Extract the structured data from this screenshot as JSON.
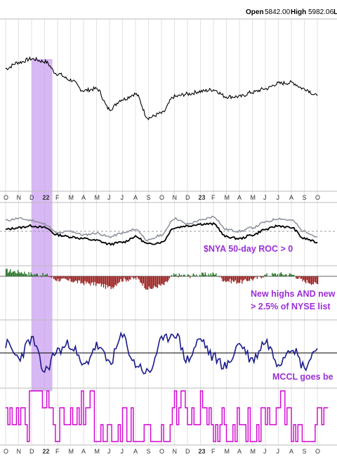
{
  "header": {
    "open_label": "Open",
    "open_value": "5842.00",
    "high_label": "High",
    "high_value": "5982.06",
    "low_label_partial": "Lo"
  },
  "x_axis": {
    "months": [
      "O",
      "N",
      "D",
      "22",
      "F",
      "M",
      "A",
      "M",
      "J",
      "J",
      "A",
      "S",
      "O",
      "N",
      "D",
      "23",
      "F",
      "M",
      "A",
      "M",
      "J",
      "J",
      "A",
      "S",
      "O"
    ],
    "year_labels": [
      "22",
      "23"
    ]
  },
  "highlight": {
    "color": "#c79af0",
    "start_month_index": 2.0,
    "end_month_index": 3.6
  },
  "colors": {
    "price": "#000000",
    "roc_light": "#8a8f9a",
    "roc_dark": "#000000",
    "nh_down": "#9b1c1c",
    "nh_up": "#1f6e1f",
    "mccl": "#1a1a8c",
    "signal": "#d100d1",
    "annotation": "#9b2fd6"
  },
  "annotations": {
    "roc": "$NYA 50-day ROC > 0",
    "newhighs_line1": "New highs AND new",
    "newhighs_line2": "> 2.5% of NYSE list",
    "mccl": "MCCL goes be"
  },
  "chart_data": [
    {
      "type": "line",
      "panel": "price",
      "x": [
        "2021-10",
        "2021-11",
        "2021-12",
        "2022-01",
        "2022-02",
        "2022-03",
        "2022-04",
        "2022-05",
        "2022-06",
        "2022-07",
        "2022-08",
        "2022-09",
        "2022-10",
        "2022-11",
        "2022-12",
        "2023-01",
        "2023-02",
        "2023-03",
        "2023-04",
        "2023-05",
        "2023-06",
        "2023-07",
        "2023-08",
        "2023-09",
        "2023-10"
      ],
      "series": [
        {
          "values": [
            16900,
            17250,
            17450,
            17300,
            16600,
            16250,
            15650,
            15750,
            14600,
            15150,
            15450,
            14100,
            14350,
            15300,
            15450,
            15600,
            15700,
            15300,
            15300,
            15550,
            15750,
            16050,
            16100,
            15750,
            15350
          ]
        }
      ]
    },
    {
      "type": "line",
      "panel": "roc",
      "x": [
        "2021-10",
        "2021-11",
        "2021-12",
        "2022-01",
        "2022-02",
        "2022-03",
        "2022-04",
        "2022-05",
        "2022-06",
        "2022-07",
        "2022-08",
        "2022-09",
        "2022-10",
        "2022-11",
        "2022-12",
        "2023-01",
        "2023-02",
        "2023-03",
        "2023-04",
        "2023-05",
        "2023-06",
        "2023-07",
        "2023-08",
        "2023-09",
        "2023-10"
      ],
      "series": [
        {
          "values": [
            3,
            4,
            3,
            1,
            -4,
            -3,
            -5,
            -4,
            -6,
            -4,
            -2,
            -8,
            -5,
            4,
            1,
            3,
            5,
            -2,
            -3,
            -1,
            2,
            4,
            3,
            -3,
            -6
          ]
        },
        {
          "values": [
            1,
            2,
            3,
            2,
            -2,
            -3,
            -4,
            -5,
            -7,
            -6,
            -3,
            -7,
            -6,
            2,
            3,
            4,
            4,
            -3,
            -4,
            -2,
            1,
            3,
            2,
            -4,
            -6
          ]
        }
      ]
    },
    {
      "type": "bar",
      "panel": "new_highs_lows",
      "x": [
        "2021-10",
        "2021-11",
        "2021-12",
        "2022-01",
        "2022-02",
        "2022-03",
        "2022-04",
        "2022-05",
        "2022-06",
        "2022-07",
        "2022-08",
        "2022-09",
        "2022-10",
        "2022-11",
        "2022-12",
        "2023-01",
        "2023-02",
        "2023-03",
        "2023-04",
        "2023-05",
        "2023-06",
        "2023-07",
        "2023-08",
        "2023-09",
        "2023-10"
      ],
      "series": [
        {
          "values": [
            1.0,
            0.8,
            0.4,
            0.2,
            -0.6,
            -0.8,
            -1.2,
            -1.4,
            -2.0,
            -0.6,
            -0.4,
            -2.2,
            -1.6,
            0.2,
            0.1,
            0.3,
            0.4,
            -0.8,
            -1.0,
            -0.5,
            0.2,
            0.4,
            0.3,
            -0.9,
            -1.4
          ]
        }
      ]
    },
    {
      "type": "line",
      "panel": "mccl",
      "x": [
        "2021-10",
        "2021-11",
        "2021-12",
        "2022-01",
        "2022-02",
        "2022-03",
        "2022-04",
        "2022-05",
        "2022-06",
        "2022-07",
        "2022-08",
        "2022-09",
        "2022-10",
        "2022-11",
        "2022-12",
        "2023-01",
        "2023-02",
        "2023-03",
        "2023-04",
        "2023-05",
        "2023-06",
        "2023-07",
        "2023-08",
        "2023-09",
        "2023-10"
      ],
      "series": [
        {
          "values": [
            40,
            -20,
            60,
            -80,
            10,
            40,
            -60,
            30,
            -40,
            70,
            -50,
            -90,
            50,
            90,
            -30,
            60,
            -20,
            -60,
            40,
            -30,
            50,
            -40,
            30,
            -60,
            20
          ]
        }
      ]
    },
    {
      "type": "line",
      "panel": "signal",
      "x": [
        "2021-10",
        "2021-11",
        "2021-12",
        "2022-01",
        "2022-02",
        "2022-03",
        "2022-04",
        "2022-05",
        "2022-06",
        "2022-07",
        "2022-08",
        "2022-09",
        "2022-10",
        "2022-11",
        "2022-12",
        "2023-01",
        "2023-02",
        "2023-03",
        "2023-04",
        "2023-05",
        "2023-06",
        "2023-07",
        "2023-08",
        "2023-09",
        "2023-10"
      ],
      "series": [
        {
          "values": [
            2,
            1,
            3,
            2,
            1,
            1,
            2,
            0,
            0,
            1,
            0,
            0,
            1,
            2,
            1,
            2,
            1,
            0,
            1,
            1,
            2,
            2,
            1,
            0,
            1
          ]
        }
      ]
    }
  ]
}
